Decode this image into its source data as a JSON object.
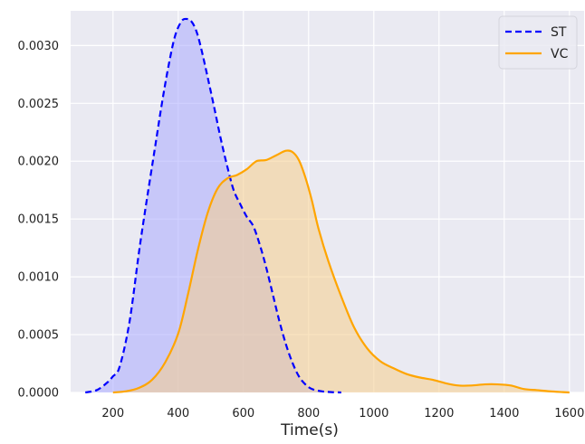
{
  "chart_data": {
    "type": "area",
    "title": "",
    "xlabel": "Time(s)",
    "ylabel": "",
    "xlim": [
      70,
      1645
    ],
    "ylim": [
      0,
      0.0033
    ],
    "xticks": [
      200,
      400,
      600,
      800,
      1000,
      1200,
      1400,
      1600
    ],
    "yticks": [
      0.0,
      0.0005,
      0.001,
      0.0015,
      0.002,
      0.0025,
      0.003
    ],
    "ytick_labels": [
      "0.0000",
      "0.0005",
      "0.0010",
      "0.0015",
      "0.0020",
      "0.0025",
      "0.0030"
    ],
    "grid": true,
    "legend_position": "top-right",
    "series": [
      {
        "name": "ST",
        "color": "#0000ff",
        "fill": "#aaaaff",
        "line_style": "dashed",
        "x": [
          115,
          150,
          180,
          200,
          220,
          250,
          280,
          300,
          330,
          350,
          370,
          390,
          410,
          425,
          440,
          455,
          470,
          490,
          510,
          530,
          550,
          570,
          590,
          610,
          630,
          650,
          670,
          690,
          710,
          730,
          750,
          770,
          790,
          810,
          840,
          870,
          900
        ],
        "y": [
          0.0,
          2e-05,
          8e-05,
          0.00014,
          0.00022,
          0.0006,
          0.00122,
          0.0016,
          0.00214,
          0.0025,
          0.00282,
          0.00308,
          0.00321,
          0.00323,
          0.00321,
          0.00313,
          0.00298,
          0.00273,
          0.00247,
          0.0022,
          0.00196,
          0.00175,
          0.00163,
          0.00152,
          0.00144,
          0.00128,
          0.00108,
          0.00085,
          0.00062,
          0.00042,
          0.00026,
          0.00014,
          7e-05,
          3e-05,
          1e-05,
          3e-06,
          0.0
        ]
      },
      {
        "name": "VC",
        "color": "#ffa500",
        "fill": "#f5cd8d",
        "line_style": "solid",
        "x": [
          200,
          240,
          280,
          320,
          360,
          400,
          430,
          460,
          490,
          520,
          550,
          580,
          610,
          640,
          670,
          700,
          730,
          750,
          770,
          790,
          810,
          830,
          860,
          900,
          940,
          980,
          1020,
          1060,
          1100,
          1140,
          1180,
          1220,
          1260,
          1300,
          1340,
          1380,
          1420,
          1460,
          1500,
          1540,
          1580,
          1600
        ],
        "y": [
          0.0,
          1e-05,
          4e-05,
          0.00011,
          0.00026,
          0.00051,
          0.00085,
          0.00123,
          0.00155,
          0.00176,
          0.00185,
          0.00188,
          0.00193,
          0.002,
          0.00201,
          0.00205,
          0.00209,
          0.00208,
          0.00201,
          0.00186,
          0.00166,
          0.00142,
          0.00114,
          0.00083,
          0.00056,
          0.00038,
          0.00027,
          0.00021,
          0.00016,
          0.00013,
          0.00011,
          8e-05,
          6e-05,
          6e-05,
          7e-05,
          7e-05,
          6e-05,
          3e-05,
          2e-05,
          1e-05,
          3e-06,
          0.0
        ]
      }
    ]
  }
}
